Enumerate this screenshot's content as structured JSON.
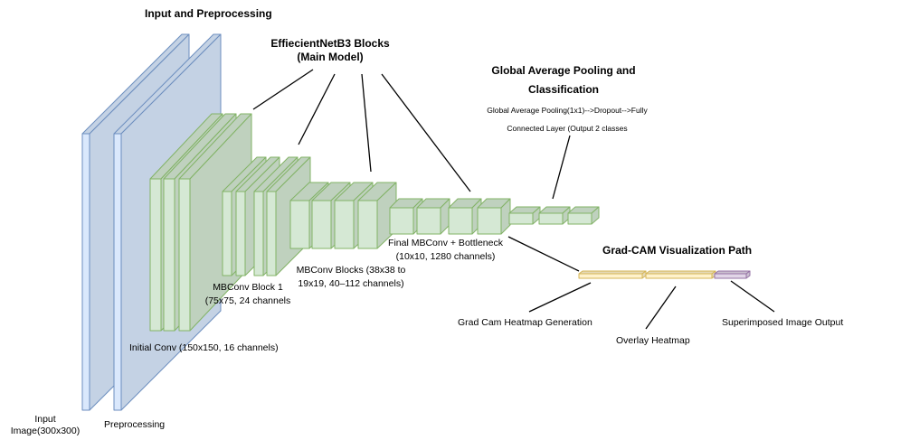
{
  "colors": {
    "input_face": "#dae8fc",
    "input_side": "#c4d2e4",
    "input_stroke": "#6c8ebf",
    "conv_face": "#d5e8d4",
    "conv_side": "#bfd1be",
    "conv_stroke": "#82b366",
    "gradcam_face": "#fff2cc",
    "gradcam_side": "#e5d9b7",
    "gradcam_stroke": "#d6b656",
    "output_face": "#e1d5e7",
    "output_side": "#cabfcf",
    "output_stroke": "#9673a6",
    "line": "#000000"
  },
  "headings": {
    "input": "Input and Preprocessing",
    "blocks": [
      "EffiecientNetB3 Blocks",
      "(Main Model)"
    ],
    "gap": [
      "Global Average Pooling and",
      "Classification"
    ],
    "gradcam": "Grad-CAM Visualization Path"
  },
  "labels": {
    "gap_detail": [
      "Global Average Pooling(1x1)-->Dropout-->Fully",
      "Connected Layer (Output 2 classes"
    ],
    "input_image": [
      "Input",
      "Image(300x300)"
    ],
    "preprocessing": "Preprocessing",
    "initial_conv": "Initial Conv (150x150, 16 channels)",
    "mbconv1": [
      "MBConv Block 1",
      "(75x75, 24 channels"
    ],
    "mbconv_blocks": [
      "MBConv Blocks (38x38 to",
      "19x19, 40–112 channels)"
    ],
    "final_mbconv": [
      "Final MBConv + Bottleneck",
      "(10x10, 1280 channels)"
    ],
    "heatmap_gen": "Grad Cam Heatmap Generation",
    "overlay": "Overlay Heatmap",
    "superimposed": "Superimposed Image Output"
  },
  "icons": [
    "input-layer-icon",
    "conv-layer-icon",
    "gradcam-layer-icon",
    "output-layer-icon"
  ]
}
